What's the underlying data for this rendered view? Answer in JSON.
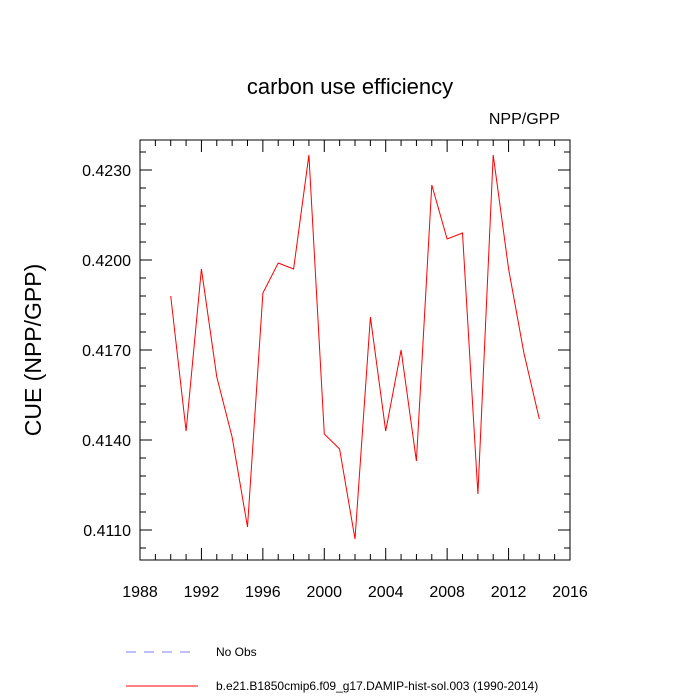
{
  "chart_data": {
    "type": "line",
    "title": "carbon use efficiency",
    "units_label": "NPP/GPP",
    "ylabel": "CUE  (NPP/GPP)",
    "xlabel": "",
    "xlim": [
      1988,
      2016
    ],
    "ylim": [
      0.41,
      0.424
    ],
    "x_ticks": [
      1988,
      1992,
      1996,
      2000,
      2004,
      2008,
      2012,
      2016
    ],
    "y_ticks": [
      0.411,
      0.414,
      0.417,
      0.42,
      0.423
    ],
    "y_tick_labels": [
      "0.4110",
      "0.4140",
      "0.4170",
      "0.4200",
      "0.4230"
    ],
    "series": [
      {
        "name": "b.e21.B1850cmip6.f09_g17.DAMIP-hist-sol.003 (1990-2014)",
        "color": "#ff0000",
        "style": "solid",
        "x": [
          1990,
          1991,
          1992,
          1993,
          1994,
          1995,
          1996,
          1997,
          1998,
          1999,
          2000,
          2001,
          2002,
          2003,
          2004,
          2005,
          2006,
          2007,
          2008,
          2009,
          2010,
          2011,
          2012,
          2013,
          2014
        ],
        "y": [
          0.4188,
          0.4143,
          0.4197,
          0.4161,
          0.4141,
          0.4111,
          0.4189,
          0.4199,
          0.4197,
          0.4235,
          0.4142,
          0.4137,
          0.4107,
          0.4181,
          0.4143,
          0.417,
          0.4133,
          0.4225,
          0.4207,
          0.4209,
          0.4122,
          0.4235,
          0.4197,
          0.4169,
          0.4147
        ]
      }
    ],
    "legend": [
      {
        "label": "No Obs",
        "color": "#8080ff",
        "style": "dashed"
      },
      {
        "label": "b.e21.B1850cmip6.f09_g17.DAMIP-hist-sol.003 (1990-2014)",
        "color": "#ff0000",
        "style": "solid"
      }
    ],
    "legend_placement": "bottom",
    "grid": false
  }
}
